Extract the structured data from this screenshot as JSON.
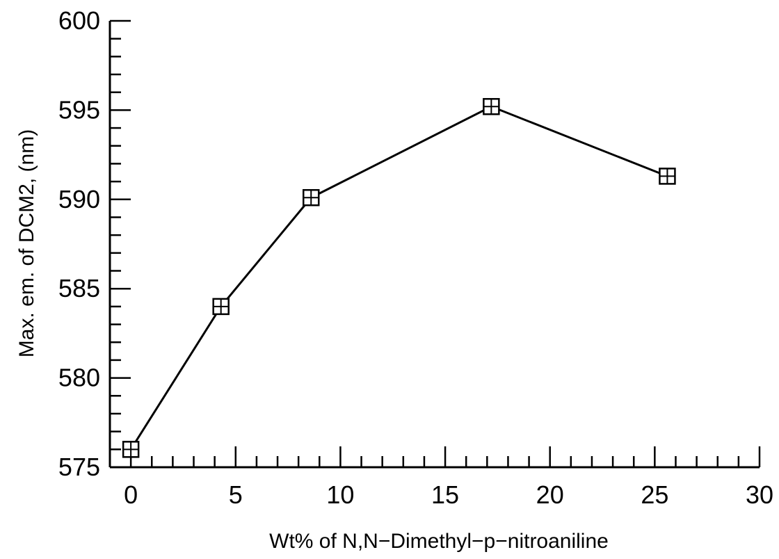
{
  "chart_data": {
    "type": "line",
    "title": "",
    "xlabel": "Wt% of N,N−Dimethyl−p−nitroaniline",
    "ylabel": "Max. em. of DCM2, (nm)",
    "xlim": [
      -1,
      30
    ],
    "ylim": [
      575,
      600
    ],
    "x_ticks": [
      0,
      5,
      10,
      15,
      20,
      25,
      30
    ],
    "y_ticks": [
      575,
      580,
      585,
      590,
      595,
      600
    ],
    "x_tick_labels": [
      "0",
      "5",
      "10",
      "15",
      "20",
      "25",
      "30"
    ],
    "y_tick_labels": [
      "575",
      "580",
      "585",
      "590",
      "595",
      "600"
    ],
    "x_minor_step": 1,
    "y_minor_step": 1,
    "grid": false,
    "legend": "none",
    "marker": "square-plus",
    "series": [
      {
        "x": [
          0,
          4.3,
          8.6,
          17.2,
          25.6
        ],
        "y": [
          576,
          584,
          590.1,
          595.2,
          591.3
        ]
      }
    ]
  }
}
